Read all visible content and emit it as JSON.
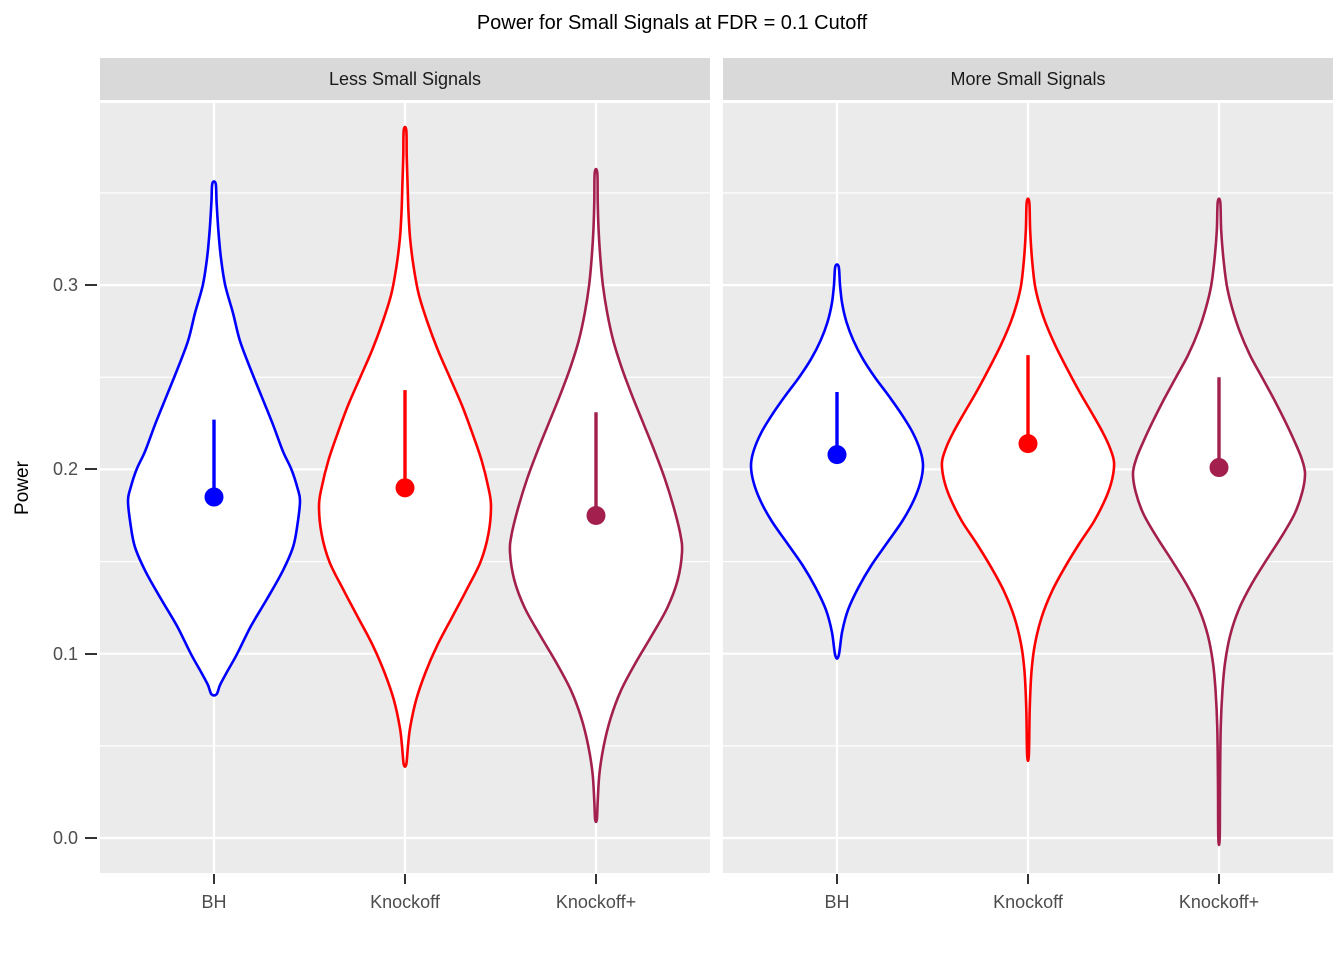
{
  "title": "Power for Small Signals at FDR = 0.1 Cutoff",
  "y_axis": {
    "title": "Power",
    "tick_labels": [
      "0.0",
      "0.1",
      "0.2",
      "0.3"
    ],
    "tick_values": [
      0.0,
      0.1,
      0.2,
      0.3
    ],
    "minor_tick_values": [
      0.05,
      0.15,
      0.25,
      0.35
    ]
  },
  "x_axis": {
    "categories": [
      "BH",
      "Knockoff",
      "Knockoff+"
    ]
  },
  "colors": {
    "bh": "#0000FF",
    "knockoff": "#FF0000",
    "knockoff_plus": "#A3204E",
    "panel_bg": "#EBEBEB",
    "strip_bg": "#D9D9D9",
    "grid": "#FFFFFF",
    "axis_text": "#4D4D4D",
    "tick_mark": "#333333",
    "strip_text": "#1A1A1A"
  },
  "chart_data": {
    "type": "violin",
    "title": "Power for Small Signals at FDR = 0.1 Cutoff",
    "xlabel": "",
    "ylabel": "Power",
    "categories": [
      "BH",
      "Knockoff",
      "Knockoff+"
    ],
    "yticks": [
      0.0,
      0.1,
      0.2,
      0.3
    ],
    "ylim": [
      -0.019,
      0.399
    ],
    "grid": "on",
    "legend": "none",
    "facets": [
      {
        "label": "Less Small Signals",
        "violins": [
          {
            "method": "BH",
            "color_key": "bh",
            "point": 0.185,
            "upper": 0.227,
            "min": 0.078,
            "max": 0.355,
            "profile": [
              [
                0.355,
                0.02
              ],
              [
                0.345,
                0.03
              ],
              [
                0.33,
                0.05
              ],
              [
                0.315,
                0.08
              ],
              [
                0.3,
                0.13
              ],
              [
                0.285,
                0.22
              ],
              [
                0.27,
                0.3
              ],
              [
                0.255,
                0.42
              ],
              [
                0.24,
                0.55
              ],
              [
                0.225,
                0.68
              ],
              [
                0.21,
                0.8
              ],
              [
                0.2,
                0.9
              ],
              [
                0.19,
                0.97
              ],
              [
                0.183,
                1.0
              ],
              [
                0.17,
                0.97
              ],
              [
                0.158,
                0.92
              ],
              [
                0.145,
                0.8
              ],
              [
                0.13,
                0.62
              ],
              [
                0.115,
                0.43
              ],
              [
                0.1,
                0.27
              ],
              [
                0.09,
                0.15
              ],
              [
                0.083,
                0.07
              ],
              [
                0.078,
                0.03
              ]
            ]
          },
          {
            "method": "Knockoff",
            "color_key": "knockoff",
            "point": 0.19,
            "upper": 0.243,
            "min": 0.04,
            "max": 0.384,
            "profile": [
              [
                0.384,
                0.015
              ],
              [
                0.37,
                0.02
              ],
              [
                0.355,
                0.03
              ],
              [
                0.34,
                0.04
              ],
              [
                0.325,
                0.06
              ],
              [
                0.31,
                0.1
              ],
              [
                0.295,
                0.16
              ],
              [
                0.28,
                0.26
              ],
              [
                0.265,
                0.38
              ],
              [
                0.25,
                0.52
              ],
              [
                0.235,
                0.66
              ],
              [
                0.22,
                0.78
              ],
              [
                0.205,
                0.89
              ],
              [
                0.19,
                0.97
              ],
              [
                0.18,
                1.0
              ],
              [
                0.165,
                0.97
              ],
              [
                0.15,
                0.88
              ],
              [
                0.135,
                0.72
              ],
              [
                0.12,
                0.55
              ],
              [
                0.105,
                0.38
              ],
              [
                0.09,
                0.24
              ],
              [
                0.075,
                0.13
              ],
              [
                0.06,
                0.06
              ],
              [
                0.05,
                0.035
              ],
              [
                0.04,
                0.015
              ]
            ]
          },
          {
            "method": "Knockoff+",
            "color_key": "knockoff_plus",
            "point": 0.175,
            "upper": 0.231,
            "min": 0.01,
            "max": 0.361,
            "profile": [
              [
                0.361,
                0.015
              ],
              [
                0.345,
                0.02
              ],
              [
                0.33,
                0.03
              ],
              [
                0.315,
                0.05
              ],
              [
                0.3,
                0.08
              ],
              [
                0.285,
                0.13
              ],
              [
                0.27,
                0.2
              ],
              [
                0.255,
                0.3
              ],
              [
                0.24,
                0.42
              ],
              [
                0.225,
                0.55
              ],
              [
                0.21,
                0.68
              ],
              [
                0.195,
                0.8
              ],
              [
                0.18,
                0.9
              ],
              [
                0.165,
                0.98
              ],
              [
                0.155,
                1.0
              ],
              [
                0.14,
                0.95
              ],
              [
                0.125,
                0.83
              ],
              [
                0.11,
                0.65
              ],
              [
                0.095,
                0.46
              ],
              [
                0.08,
                0.29
              ],
              [
                0.065,
                0.17
              ],
              [
                0.05,
                0.09
              ],
              [
                0.035,
                0.04
              ],
              [
                0.02,
                0.02
              ],
              [
                0.01,
                0.01
              ]
            ]
          }
        ]
      },
      {
        "label": "More Small Signals",
        "violins": [
          {
            "method": "BH",
            "color_key": "bh",
            "point": 0.208,
            "upper": 0.242,
            "min": 0.099,
            "max": 0.31,
            "profile": [
              [
                0.31,
                0.02
              ],
              [
                0.3,
                0.035
              ],
              [
                0.29,
                0.06
              ],
              [
                0.28,
                0.11
              ],
              [
                0.27,
                0.19
              ],
              [
                0.26,
                0.3
              ],
              [
                0.25,
                0.44
              ],
              [
                0.24,
                0.6
              ],
              [
                0.23,
                0.75
              ],
              [
                0.22,
                0.88
              ],
              [
                0.21,
                0.97
              ],
              [
                0.202,
                1.0
              ],
              [
                0.193,
                0.97
              ],
              [
                0.183,
                0.89
              ],
              [
                0.172,
                0.76
              ],
              [
                0.16,
                0.58
              ],
              [
                0.148,
                0.4
              ],
              [
                0.136,
                0.25
              ],
              [
                0.124,
                0.13
              ],
              [
                0.112,
                0.06
              ],
              [
                0.099,
                0.02
              ]
            ]
          },
          {
            "method": "Knockoff",
            "color_key": "knockoff",
            "point": 0.214,
            "upper": 0.262,
            "min": 0.045,
            "max": 0.345,
            "profile": [
              [
                0.345,
                0.015
              ],
              [
                0.33,
                0.025
              ],
              [
                0.315,
                0.045
              ],
              [
                0.3,
                0.08
              ],
              [
                0.29,
                0.13
              ],
              [
                0.28,
                0.2
              ],
              [
                0.268,
                0.31
              ],
              [
                0.255,
                0.45
              ],
              [
                0.242,
                0.6
              ],
              [
                0.23,
                0.75
              ],
              [
                0.22,
                0.87
              ],
              [
                0.212,
                0.95
              ],
              [
                0.204,
                1.0
              ],
              [
                0.195,
                0.98
              ],
              [
                0.185,
                0.91
              ],
              [
                0.172,
                0.77
              ],
              [
                0.16,
                0.6
              ],
              [
                0.147,
                0.43
              ],
              [
                0.134,
                0.28
              ],
              [
                0.12,
                0.16
              ],
              [
                0.105,
                0.08
              ],
              [
                0.09,
                0.04
              ],
              [
                0.07,
                0.02
              ],
              [
                0.045,
                0.01
              ]
            ]
          },
          {
            "method": "Knockoff+",
            "color_key": "knockoff_plus",
            "point": 0.201,
            "upper": 0.25,
            "min": 0.0,
            "max": 0.345,
            "profile": [
              [
                0.345,
                0.015
              ],
              [
                0.33,
                0.025
              ],
              [
                0.315,
                0.05
              ],
              [
                0.3,
                0.09
              ],
              [
                0.288,
                0.15
              ],
              [
                0.275,
                0.24
              ],
              [
                0.262,
                0.36
              ],
              [
                0.25,
                0.5
              ],
              [
                0.238,
                0.64
              ],
              [
                0.226,
                0.77
              ],
              [
                0.215,
                0.88
              ],
              [
                0.206,
                0.96
              ],
              [
                0.198,
                1.0
              ],
              [
                0.188,
                0.97
              ],
              [
                0.176,
                0.88
              ],
              [
                0.163,
                0.72
              ],
              [
                0.15,
                0.54
              ],
              [
                0.137,
                0.37
              ],
              [
                0.124,
                0.23
              ],
              [
                0.11,
                0.13
              ],
              [
                0.095,
                0.07
              ],
              [
                0.08,
                0.04
              ],
              [
                0.06,
                0.02
              ],
              [
                0.03,
                0.012
              ],
              [
                0.0,
                0.008
              ]
            ]
          }
        ]
      }
    ]
  }
}
